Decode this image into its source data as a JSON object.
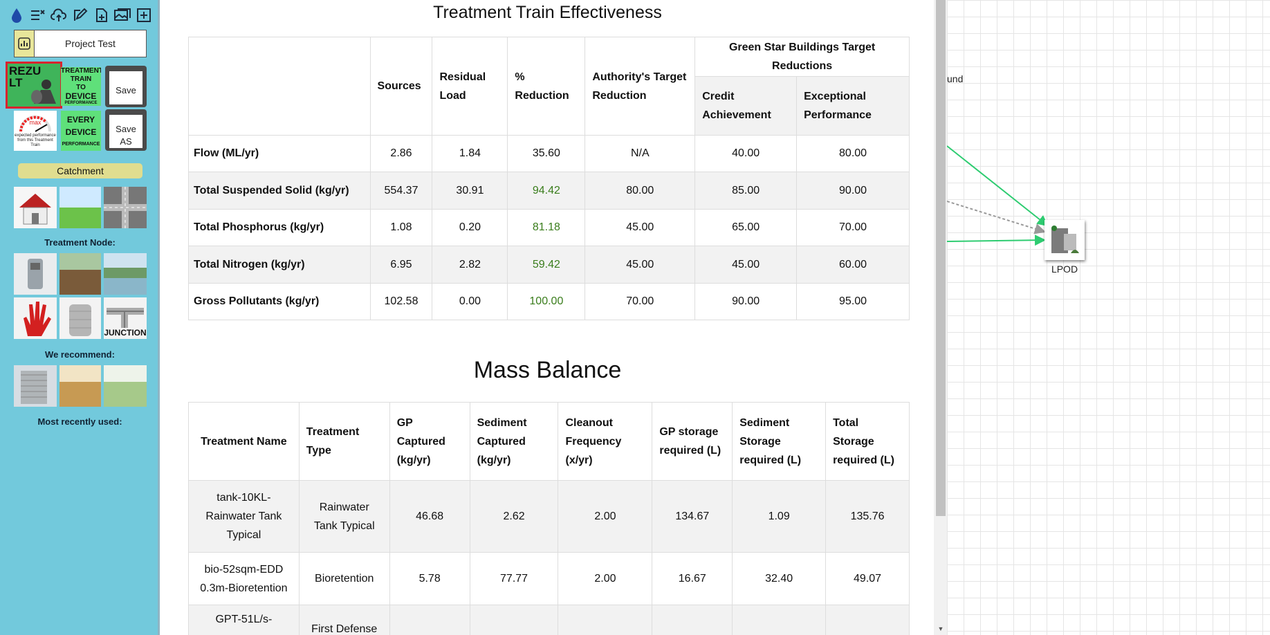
{
  "sidebar": {
    "toolbar_icons": [
      "drop-icon",
      "checklist-icon",
      "cloud-upload-icon",
      "edit-icon",
      "new-file-icon",
      "images-icon",
      "add-box-icon"
    ],
    "project_name": "Project Test",
    "tiles": {
      "result": "REZU LT",
      "treatment_train_l1": "TREATMENT",
      "treatment_train_l2": "TRAIN",
      "treatment_train_l3": "TO",
      "treatment_train_l4": "DEVICE",
      "treatment_train_l5": "PERFORMANCE",
      "save": "Save",
      "max_label": "max",
      "max_caption": "expected performance from this Treatment Train",
      "every_device_l1": "EVERY",
      "every_device_l2": "DEVICE",
      "every_device_l3": "PERFORMANCE",
      "save_as": "Save AS"
    },
    "catchment_label": "Catchment",
    "treatment_node_label": "Treatment Node:",
    "junction_label": "JUNCTION",
    "recommend_label": "We recommend:",
    "recent_label": "Most recently used:"
  },
  "effectiveness": {
    "title": "Treatment Train Effectiveness",
    "headers": {
      "sources": "Sources",
      "residual": "Residual Load",
      "reduction": "% Reduction",
      "authority": "Authority's Target Reduction",
      "greenstar": "Green Star Buildings Target Reductions",
      "credit": "Credit Achievement",
      "exceptional": "Exceptional Performance"
    },
    "rows": [
      {
        "label": "Flow (ML/yr)",
        "sources": "2.86",
        "residual": "1.84",
        "reduction": "35.60",
        "authority": "N/A",
        "credit": "40.00",
        "exceptional": "80.00"
      },
      {
        "label": "Total Suspended Solid (kg/yr)",
        "sources": "554.37",
        "residual": "30.91",
        "reduction": "94.42",
        "authority": "80.00",
        "credit": "85.00",
        "exceptional": "90.00"
      },
      {
        "label": "Total Phosphorus (kg/yr)",
        "sources": "1.08",
        "residual": "0.20",
        "reduction": "81.18",
        "authority": "45.00",
        "credit": "65.00",
        "exceptional": "70.00"
      },
      {
        "label": "Total Nitrogen (kg/yr)",
        "sources": "6.95",
        "residual": "2.82",
        "reduction": "59.42",
        "authority": "45.00",
        "credit": "45.00",
        "exceptional": "60.00"
      },
      {
        "label": "Gross Pollutants (kg/yr)",
        "sources": "102.58",
        "residual": "0.00",
        "reduction": "100.00",
        "authority": "70.00",
        "credit": "90.00",
        "exceptional": "95.00"
      }
    ]
  },
  "mass_balance": {
    "title": "Mass Balance",
    "headers": {
      "name": "Treatment Name",
      "type": "Treatment Type",
      "gp": "GP Captured (kg/yr)",
      "sediment": "Sediment Captured (kg/yr)",
      "cleanout": "Cleanout Frequency (x/yr)",
      "gp_storage": "GP storage required (L)",
      "sed_storage": "Sediment Storage required (L)",
      "total_storage": "Total Storage required (L)"
    },
    "rows": [
      {
        "name": "tank-10KL-Rainwater Tank Typical",
        "type": "Rainwater Tank Typical",
        "gp": "46.68",
        "sediment": "2.62",
        "cleanout": "2.00",
        "gp_storage": "134.67",
        "sed_storage": "1.09",
        "total_storage": "135.76"
      },
      {
        "name": "bio-52sqm-EDD 0.3m-Bioretention",
        "type": "Bioretention",
        "gp": "5.78",
        "sediment": "77.77",
        "cleanout": "2.00",
        "gp_storage": "16.67",
        "sed_storage": "32.40",
        "total_storage": "49.07"
      },
      {
        "name": "GPT-51L/s-",
        "type": "First Defense",
        "gp": "",
        "sediment": "",
        "cleanout": "",
        "gp_storage": "",
        "sed_storage": "",
        "total_storage": ""
      }
    ]
  },
  "canvas": {
    "partial_label": "und",
    "node_label": "LPOD"
  },
  "colors": {
    "sidebar_bg": "#72c9dc",
    "green_value": "#3a7d1c",
    "edge_green": "#2ecc71",
    "highlight_border": "#d9232e"
  }
}
